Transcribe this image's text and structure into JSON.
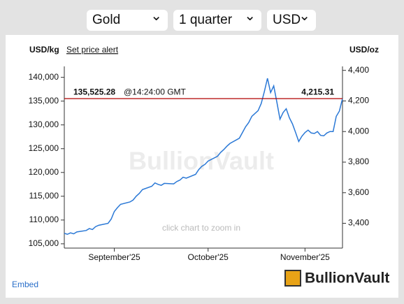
{
  "controls": {
    "metal": "Gold",
    "period": "1 quarter",
    "currency": "USD"
  },
  "chart_data": {
    "type": "line",
    "ylabel": "USD/kg",
    "y2label": "USD/oz",
    "alert_link": "Set price alert",
    "watermark": "BullionVault",
    "hint": "click chart to zoom in",
    "x": [
      0,
      1,
      2,
      3,
      4,
      7,
      8,
      9,
      10,
      11,
      14,
      15,
      16,
      17,
      18,
      21,
      22,
      23,
      24,
      25,
      28,
      29,
      30,
      31,
      32,
      35,
      36,
      37,
      38,
      39,
      42,
      43,
      44,
      45,
      46,
      49,
      50,
      51,
      52,
      53,
      56,
      57,
      58,
      59,
      60,
      62,
      63,
      64,
      65,
      66,
      67,
      68,
      69,
      70,
      71,
      72,
      73,
      74,
      75,
      76,
      77,
      78,
      79,
      80,
      81,
      82,
      83,
      84,
      85,
      86,
      87,
      88,
      89
    ],
    "series": [
      {
        "name": "Gold",
        "color": "#2a78d6",
        "values": [
          107200,
          107000,
          107300,
          107100,
          107500,
          107800,
          108200,
          108000,
          108600,
          108900,
          109300,
          110200,
          111800,
          112600,
          113300,
          113800,
          114200,
          115000,
          115600,
          116400,
          117100,
          117800,
          117500,
          117300,
          117700,
          117600,
          118100,
          118400,
          119000,
          118800,
          119600,
          120600,
          121300,
          121700,
          122400,
          123400,
          124200,
          124800,
          125500,
          126100,
          127200,
          128400,
          129600,
          130500,
          131800,
          133000,
          134500,
          137000,
          139800,
          136800,
          138200,
          134800,
          131200,
          132600,
          133400,
          131500,
          130200,
          128400,
          126500,
          127600,
          128400,
          128900,
          128300,
          128200,
          128600,
          127800,
          127700,
          128300,
          128600,
          128600,
          131800,
          132900,
          135525.28
        ]
      }
    ],
    "xlim": [
      0,
      89
    ],
    "xticks": [
      {
        "value": 16,
        "label": "September'25"
      },
      {
        "value": 46,
        "label": "October'25"
      },
      {
        "value": 77,
        "label": "November'25"
      }
    ],
    "ylim": [
      104100,
      142300
    ],
    "yticks": [
      {
        "value": 105000,
        "label": "105,000"
      },
      {
        "value": 110000,
        "label": "110,000"
      },
      {
        "value": 115000,
        "label": "115,000"
      },
      {
        "value": 120000,
        "label": "120,000"
      },
      {
        "value": 125000,
        "label": "125,000"
      },
      {
        "value": 130000,
        "label": "130,000"
      },
      {
        "value": 135000,
        "label": "135,000"
      },
      {
        "value": 140000,
        "label": "140,000"
      }
    ],
    "y2lim": [
      3237.9,
      4426
    ],
    "y2ticks": [
      {
        "value": 3400,
        "label": "3,400"
      },
      {
        "value": 3600,
        "label": "3,600"
      },
      {
        "value": 3800,
        "label": "3,800"
      },
      {
        "value": 4000,
        "label": "4,000"
      },
      {
        "value": 4200,
        "label": "4,200"
      },
      {
        "value": 4400,
        "label": "4,400"
      }
    ],
    "current": {
      "kg": {
        "value": 135525.28,
        "label": "135,525.28"
      },
      "time": "@14:24:00 GMT",
      "oz": {
        "value": 4215.31,
        "label": "4,215.31"
      },
      "color": "#b00000"
    }
  },
  "footer": {
    "embed": "Embed",
    "logo": "BullionVault"
  }
}
